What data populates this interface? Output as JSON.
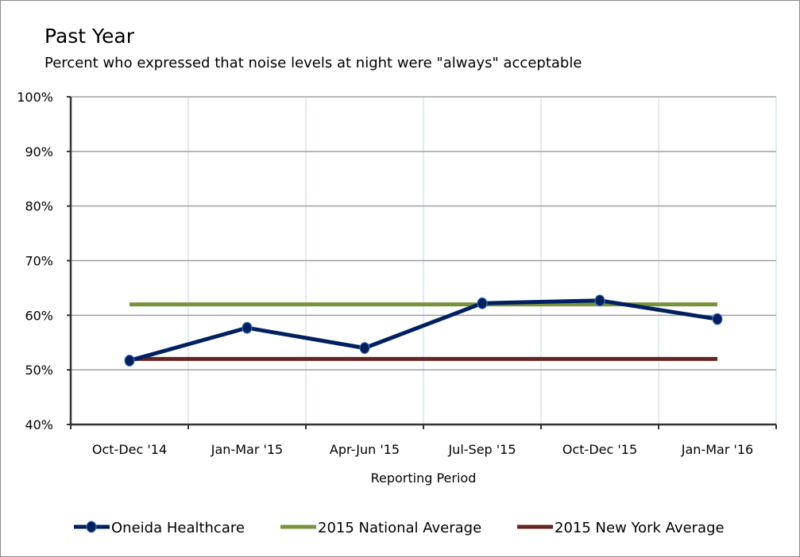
{
  "chart_data": {
    "type": "line",
    "title": "Past Year",
    "subtitle": "Percent who expressed that noise levels at night were \"always\" acceptable",
    "xlabel": "Reporting Period",
    "ylabel": "",
    "categories": [
      "Oct-Dec '14",
      "Jan-Mar '15",
      "Apr-Jun '15",
      "Jul-Sep '15",
      "Oct-Dec '15",
      "Jan-Mar '16"
    ],
    "ylim": [
      40,
      100
    ],
    "yticks": [
      40,
      50,
      60,
      70,
      80,
      90,
      100
    ],
    "ytick_labels": [
      "40%",
      "50%",
      "60%",
      "70%",
      "80%",
      "90%",
      "100%"
    ],
    "grid": true,
    "legend_placement": "bottom",
    "series": [
      {
        "name": "Oneida Healthcare",
        "color": "#002060",
        "markers": true,
        "values": [
          51.7,
          57.7,
          54.0,
          62.2,
          62.7,
          59.3
        ]
      },
      {
        "name": "2015 National Average",
        "color": "#77933C",
        "markers": false,
        "values": [
          62,
          62,
          62,
          62,
          62,
          62
        ]
      },
      {
        "name": "2015 New York Average",
        "color": "#632523",
        "markers": false,
        "values": [
          52,
          52,
          52,
          52,
          52,
          52
        ]
      }
    ]
  }
}
